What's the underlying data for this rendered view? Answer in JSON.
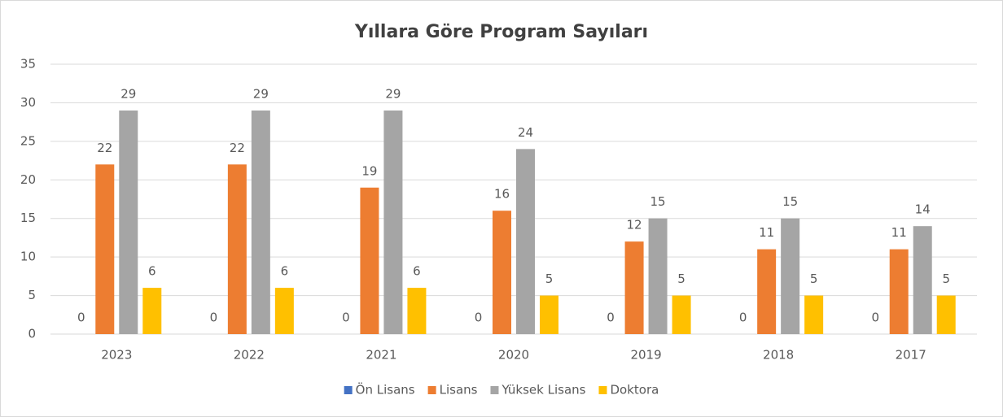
{
  "chart_data": {
    "type": "bar",
    "title": "Yıllara Göre Program Sayıları",
    "categories": [
      "2023",
      "2022",
      "2021",
      "2020",
      "2019",
      "2018",
      "2017"
    ],
    "series": [
      {
        "name": "Ön Lisans",
        "color": "#4472c4",
        "values": [
          0,
          0,
          0,
          0,
          0,
          0,
          0
        ]
      },
      {
        "name": "Lisans",
        "color": "#ed7d31",
        "values": [
          22,
          22,
          19,
          16,
          12,
          11,
          11
        ]
      },
      {
        "name": "Yüksek Lisans",
        "color": "#a5a5a5",
        "values": [
          29,
          29,
          29,
          24,
          15,
          15,
          14
        ]
      },
      {
        "name": "Doktora",
        "color": "#ffc000",
        "values": [
          6,
          6,
          6,
          5,
          5,
          5,
          5
        ]
      }
    ],
    "ylim": [
      0,
      35
    ],
    "yticks": [
      0,
      5,
      10,
      15,
      20,
      25,
      30,
      35
    ],
    "grid": true,
    "legend": "bottom"
  }
}
